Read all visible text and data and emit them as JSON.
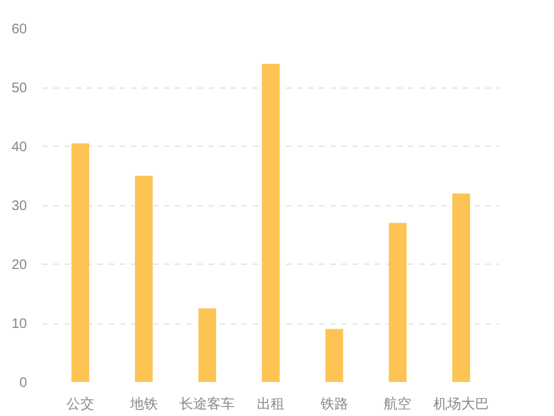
{
  "chart_data": {
    "type": "bar",
    "categories": [
      "公交",
      "地铁",
      "长途客车",
      "出租",
      "铁路",
      "航空",
      "机场大巴"
    ],
    "values": [
      40.5,
      35,
      12.5,
      54,
      9,
      27,
      32
    ],
    "color": "#fdc453",
    "ylim": [
      0,
      60
    ],
    "yticks": [
      0,
      10,
      20,
      30,
      40,
      50,
      60
    ],
    "grid": "y"
  }
}
